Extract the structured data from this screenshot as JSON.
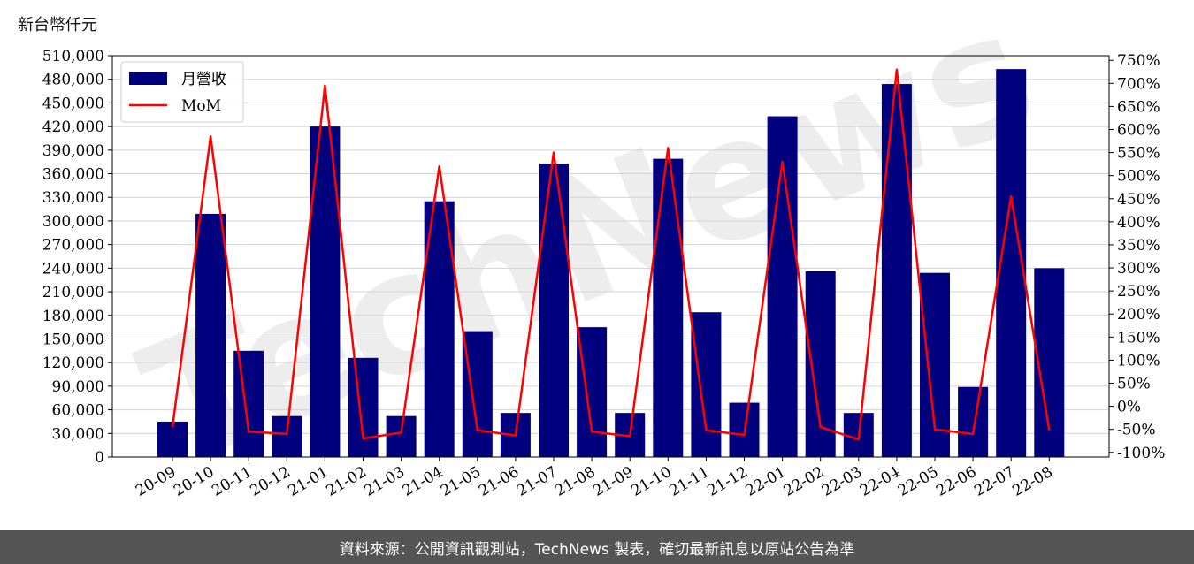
{
  "unit_label": "新台幣仟元",
  "footer_text": "資料來源：公開資訊觀測站，TechNews 製表，確切最新訊息以原站公告為準",
  "watermark_text": "TechNews",
  "colors": {
    "bar": "#00007f",
    "line": "#ff0000",
    "watermark": "#e0e0e0",
    "footer_bg": "#555555"
  },
  "chart_data": {
    "type": "bar",
    "categories": [
      "20-09",
      "20-10",
      "20-11",
      "20-12",
      "21-01",
      "21-02",
      "21-03",
      "21-04",
      "21-05",
      "21-06",
      "21-07",
      "21-08",
      "21-09",
      "21-10",
      "21-11",
      "21-12",
      "22-01",
      "22-02",
      "22-03",
      "22-04",
      "22-05",
      "22-06",
      "22-07",
      "22-08"
    ],
    "series": [
      {
        "name": "月營收",
        "type": "bar",
        "axis": "left",
        "values": [
          45000,
          309000,
          135000,
          52000,
          420000,
          126000,
          52000,
          325000,
          160000,
          56000,
          373000,
          165000,
          56000,
          379000,
          184000,
          69000,
          433000,
          236000,
          56000,
          474000,
          234000,
          89000,
          493000,
          240000
        ]
      },
      {
        "name": "MoM",
        "type": "line",
        "axis": "right",
        "values": [
          -45,
          585,
          -55,
          -60,
          695,
          -70,
          -57,
          520,
          -52,
          -63,
          550,
          -55,
          -65,
          560,
          -52,
          -62,
          530,
          -45,
          -72,
          730,
          -50,
          -60,
          455,
          -52
        ]
      }
    ],
    "ylim_left": [
      0,
      510000
    ],
    "yticks_left": [
      "0",
      "30,000",
      "60,000",
      "90,000",
      "120,000",
      "150,000",
      "180,000",
      "210,000",
      "240,000",
      "270,000",
      "300,000",
      "330,000",
      "360,000",
      "390,000",
      "420,000",
      "450,000",
      "480,000",
      "510,000"
    ],
    "yticks_left_values": [
      0,
      30000,
      60000,
      90000,
      120000,
      150000,
      180000,
      210000,
      240000,
      270000,
      300000,
      330000,
      360000,
      390000,
      420000,
      450000,
      480000,
      510000
    ],
    "ylim_right": [
      -110,
      760
    ],
    "yticks_right": [
      "-100%",
      "-50%",
      "0%",
      "50%",
      "100%",
      "150%",
      "200%",
      "250%",
      "300%",
      "350%",
      "400%",
      "450%",
      "500%",
      "550%",
      "600%",
      "650%",
      "700%",
      "750%"
    ],
    "yticks_right_values": [
      -100,
      -50,
      0,
      50,
      100,
      150,
      200,
      250,
      300,
      350,
      400,
      450,
      500,
      550,
      600,
      650,
      700,
      750
    ],
    "grid": true,
    "legend_position": "top-left"
  }
}
